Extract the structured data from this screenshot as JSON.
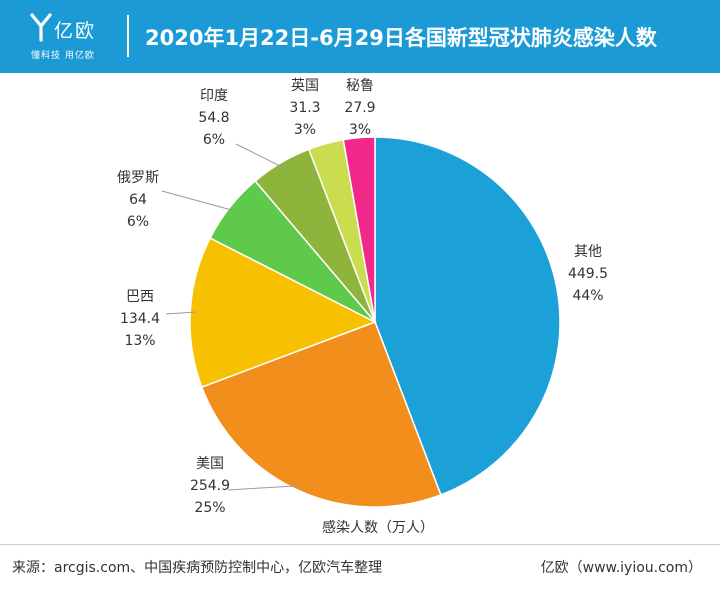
{
  "header": {
    "brand_name": "亿欧",
    "brand_slogan": "懂科技 用亿欧",
    "title": "2020年1月22日-6月29日各国新型冠状肺炎感染人数"
  },
  "chart_data": {
    "type": "pie",
    "title": "2020年1月22日-6月29日各国新型冠状肺炎感染人数",
    "caption": "感染人数（万人）",
    "slices": [
      {
        "label": "其他",
        "value": 449.5,
        "value_text": "449.5",
        "percent": "44%",
        "color": "#1ba0d8"
      },
      {
        "label": "美国",
        "value": 254.9,
        "value_text": "254.9",
        "percent": "25%",
        "color": "#f28e1c"
      },
      {
        "label": "巴西",
        "value": 134.4,
        "value_text": "134.4",
        "percent": "13%",
        "color": "#f7c000"
      },
      {
        "label": "俄罗斯",
        "value": 64,
        "value_text": "64",
        "percent": "6%",
        "color": "#5ec94a"
      },
      {
        "label": "印度",
        "value": 54.8,
        "value_text": "54.8",
        "percent": "6%",
        "color": "#8fb43b"
      },
      {
        "label": "英国",
        "value": 31.3,
        "value_text": "31.3",
        "percent": "3%",
        "color": "#c9dd4f"
      },
      {
        "label": "秘鲁",
        "value": 27.9,
        "value_text": "27.9",
        "percent": "3%",
        "color": "#f2278a"
      }
    ]
  },
  "footer": {
    "source": "来源：arcgis.com、中国疾病预防控制中心，亿欧汽车整理",
    "brand": "亿欧（www.iyiou.com）"
  }
}
